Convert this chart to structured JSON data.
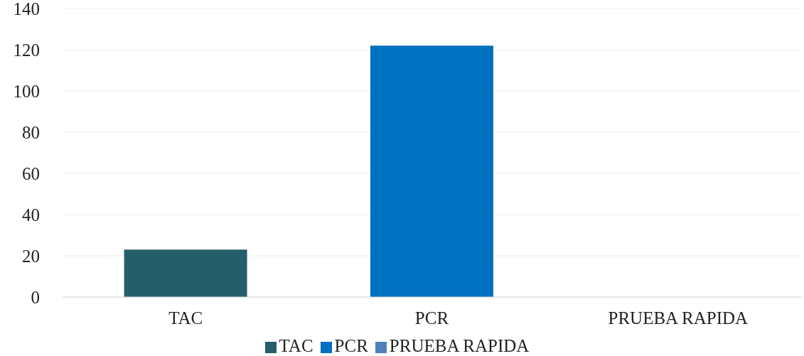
{
  "chart_data": {
    "type": "bar",
    "categories": [
      "TAC",
      "PCR",
      "PRUEBA RAPIDA"
    ],
    "stacked": true,
    "series": [
      {
        "name": "TAC",
        "color": "#255e6b",
        "values": [
          23,
          null,
          null
        ]
      },
      {
        "name": "PCR",
        "color": "#0070c0",
        "values": [
          null,
          122,
          null
        ]
      },
      {
        "name": "PRUEBA RAPIDA",
        "color": "#4f81bd",
        "values": [
          null,
          null,
          0
        ]
      }
    ],
    "ylim": [
      0,
      140
    ],
    "yticks": [
      0,
      20,
      40,
      60,
      80,
      100,
      120,
      140
    ],
    "grid": "y",
    "legend": "bottom"
  }
}
